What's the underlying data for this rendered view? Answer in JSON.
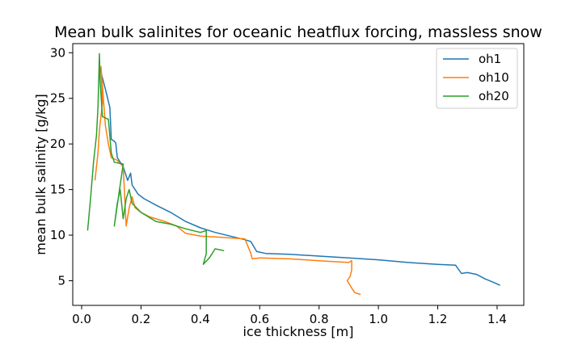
{
  "chart_data": {
    "type": "line",
    "title": "Mean bulk salinites for oceanic heatflux forcing, massless snow",
    "xlabel": "ice thickness [m]",
    "ylabel": "mean bulk salinity [g/kg]",
    "xlim": [
      -0.03,
      1.49
    ],
    "ylim": [
      2.3,
      31.0
    ],
    "x_ticks": [
      "0.0",
      "0.2",
      "0.4",
      "0.6",
      "0.8",
      "1.0",
      "1.2",
      "1.4"
    ],
    "y_ticks": [
      "5",
      "10",
      "15",
      "20",
      "25",
      "30"
    ],
    "grid": false,
    "legend_position": "top-right",
    "colors": {
      "oh1": "#1f77b4",
      "oh10": "#ff7f0e",
      "oh20": "#2ca02c"
    },
    "series": [
      {
        "name": "oh1",
        "color": "#1f77b4",
        "points": [
          [
            0.06,
            28.5
          ],
          [
            0.08,
            26.0
          ],
          [
            0.095,
            24.0
          ],
          [
            0.1,
            20.5
          ],
          [
            0.11,
            20.3
          ],
          [
            0.115,
            20.1
          ],
          [
            0.12,
            18.5
          ],
          [
            0.14,
            17.5
          ],
          [
            0.155,
            16.0
          ],
          [
            0.165,
            16.8
          ],
          [
            0.17,
            15.5
          ],
          [
            0.19,
            14.5
          ],
          [
            0.21,
            14.0
          ],
          [
            0.25,
            13.3
          ],
          [
            0.3,
            12.5
          ],
          [
            0.35,
            11.5
          ],
          [
            0.4,
            10.8
          ],
          [
            0.45,
            10.3
          ],
          [
            0.5,
            9.9
          ],
          [
            0.55,
            9.5
          ],
          [
            0.57,
            9.3
          ],
          [
            0.59,
            8.2
          ],
          [
            0.62,
            8.0
          ],
          [
            0.7,
            7.9
          ],
          [
            0.8,
            7.7
          ],
          [
            0.9,
            7.5
          ],
          [
            1.0,
            7.3
          ],
          [
            1.1,
            7.0
          ],
          [
            1.2,
            6.8
          ],
          [
            1.26,
            6.7
          ],
          [
            1.28,
            5.8
          ],
          [
            1.3,
            5.9
          ],
          [
            1.33,
            5.7
          ],
          [
            1.36,
            5.2
          ],
          [
            1.39,
            4.8
          ],
          [
            1.41,
            4.5
          ]
        ]
      },
      {
        "name": "oh10",
        "color": "#ff7f0e",
        "points": [
          [
            0.045,
            16.0
          ],
          [
            0.055,
            19.0
          ],
          [
            0.06,
            21.5
          ],
          [
            0.07,
            24.5
          ],
          [
            0.065,
            28.5
          ],
          [
            0.08,
            22.0
          ],
          [
            0.09,
            20.0
          ],
          [
            0.1,
            18.5
          ],
          [
            0.12,
            18.2
          ],
          [
            0.14,
            17.5
          ],
          [
            0.15,
            11.0
          ],
          [
            0.16,
            13.0
          ],
          [
            0.17,
            14.2
          ],
          [
            0.18,
            13.0
          ],
          [
            0.2,
            12.5
          ],
          [
            0.23,
            12.0
          ],
          [
            0.28,
            11.5
          ],
          [
            0.32,
            11.0
          ],
          [
            0.35,
            10.2
          ],
          [
            0.4,
            9.9
          ],
          [
            0.45,
            9.8
          ],
          [
            0.5,
            9.7
          ],
          [
            0.55,
            9.6
          ],
          [
            0.57,
            8.0
          ],
          [
            0.575,
            7.4
          ],
          [
            0.6,
            7.5
          ],
          [
            0.7,
            7.4
          ],
          [
            0.8,
            7.2
          ],
          [
            0.9,
            7.0
          ],
          [
            0.91,
            7.2
          ],
          [
            0.91,
            6.2
          ],
          [
            0.905,
            5.5
          ],
          [
            0.895,
            5.0
          ],
          [
            0.91,
            4.2
          ],
          [
            0.92,
            3.7
          ],
          [
            0.94,
            3.5
          ]
        ]
      },
      {
        "name": "oh20",
        "color": "#2ca02c",
        "points": [
          [
            0.02,
            10.5
          ],
          [
            0.03,
            14.0
          ],
          [
            0.04,
            18.0
          ],
          [
            0.05,
            21.0
          ],
          [
            0.055,
            24.0
          ],
          [
            0.06,
            29.9
          ],
          [
            0.062,
            27.0
          ],
          [
            0.07,
            23.0
          ],
          [
            0.09,
            22.7
          ],
          [
            0.1,
            19.0
          ],
          [
            0.11,
            18.0
          ],
          [
            0.14,
            17.8
          ],
          [
            0.11,
            11.0
          ],
          [
            0.12,
            13.5
          ],
          [
            0.13,
            15.0
          ],
          [
            0.14,
            11.8
          ],
          [
            0.15,
            14.0
          ],
          [
            0.16,
            15.0
          ],
          [
            0.17,
            13.5
          ],
          [
            0.2,
            12.5
          ],
          [
            0.25,
            11.5
          ],
          [
            0.3,
            11.2
          ],
          [
            0.35,
            10.7
          ],
          [
            0.4,
            10.3
          ],
          [
            0.42,
            10.5
          ],
          [
            0.42,
            8.0
          ],
          [
            0.41,
            6.8
          ],
          [
            0.43,
            7.5
          ],
          [
            0.45,
            8.5
          ],
          [
            0.48,
            8.3
          ]
        ]
      }
    ]
  }
}
